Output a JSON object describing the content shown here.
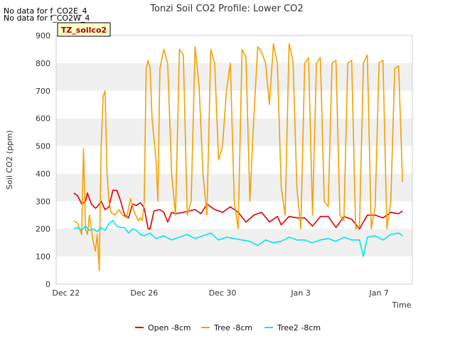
{
  "chart_data": {
    "type": "line",
    "title": "Tonzi Soil CO2 Profile: Lower CO2",
    "notes": [
      "No data for f_CO2E_4",
      "No data for f_CO2W_4"
    ],
    "tag": "TZ_soilco2",
    "xlabel": "Time",
    "ylabel": "Soil CO2 (ppm)",
    "ylim": [
      0,
      900
    ],
    "yticks": [
      0,
      100,
      200,
      300,
      400,
      500,
      600,
      700,
      800,
      900
    ],
    "xlim": [
      -0.5,
      17.7
    ],
    "xticks": [
      {
        "day": 0,
        "label": "Dec 22"
      },
      {
        "day": 4,
        "label": "Dec 26"
      },
      {
        "day": 8,
        "label": "Dec 30"
      },
      {
        "day": 12,
        "label": "Jan 3"
      },
      {
        "day": 16,
        "label": "Jan 7"
      }
    ],
    "grid": "horizontal alternating bands",
    "legend_position": "bottom",
    "series": [
      {
        "name": "Open -8cm",
        "color": "#dd0000",
        "x": [
          0.4,
          0.6,
          0.8,
          1.0,
          1.1,
          1.3,
          1.5,
          1.6,
          1.8,
          2.0,
          2.2,
          2.4,
          2.6,
          2.8,
          3.0,
          3.2,
          3.4,
          3.6,
          3.8,
          4.0,
          4.2,
          4.3,
          4.5,
          4.8,
          5.0,
          5.2,
          5.4,
          5.6,
          6.0,
          6.3,
          6.6,
          6.9,
          7.2,
          7.6,
          8.0,
          8.4,
          8.8,
          9.2,
          9.6,
          10.0,
          10.4,
          10.8,
          11.0,
          11.4,
          11.8,
          12.2,
          12.6,
          13.0,
          13.4,
          13.8,
          14.2,
          14.6,
          15.0,
          15.4,
          15.8,
          16.2,
          16.6,
          17.0,
          17.2
        ],
        "values": [
          330,
          320,
          290,
          300,
          330,
          290,
          275,
          280,
          300,
          270,
          280,
          340,
          340,
          300,
          250,
          240,
          290,
          285,
          295,
          275,
          200,
          200,
          265,
          270,
          260,
          225,
          260,
          255,
          260,
          265,
          270,
          255,
          290,
          270,
          260,
          280,
          260,
          225,
          250,
          260,
          225,
          245,
          215,
          245,
          240,
          240,
          210,
          245,
          245,
          205,
          245,
          235,
          200,
          250,
          250,
          240,
          260,
          255,
          265
        ]
      },
      {
        "name": "Tree -8cm",
        "color": "#f5a000",
        "x": [
          0.4,
          0.6,
          0.8,
          0.9,
          1.0,
          1.1,
          1.2,
          1.4,
          1.5,
          1.6,
          1.7,
          1.8,
          1.9,
          2.0,
          2.1,
          2.2,
          2.3,
          2.5,
          2.7,
          2.9,
          3.1,
          3.3,
          3.5,
          3.7,
          3.8,
          3.9,
          4.0,
          4.1,
          4.2,
          4.3,
          4.4,
          4.6,
          4.7,
          4.8,
          5.0,
          5.2,
          5.4,
          5.6,
          5.8,
          6.0,
          6.2,
          6.4,
          6.6,
          6.8,
          7.0,
          7.2,
          7.4,
          7.6,
          7.8,
          8.0,
          8.2,
          8.4,
          8.6,
          8.8,
          9.0,
          9.2,
          9.4,
          9.6,
          9.8,
          10.0,
          10.2,
          10.4,
          10.6,
          10.8,
          11.0,
          11.2,
          11.4,
          11.6,
          11.8,
          12.0,
          12.2,
          12.4,
          12.6,
          12.8,
          13.0,
          13.2,
          13.4,
          13.6,
          13.8,
          14.0,
          14.2,
          14.4,
          14.6,
          14.8,
          15.0,
          15.2,
          15.4,
          15.6,
          15.8,
          16.0,
          16.2,
          16.4,
          16.6,
          16.8,
          17.0,
          17.2
        ],
        "values": [
          230,
          220,
          180,
          490,
          200,
          180,
          250,
          150,
          120,
          180,
          50,
          500,
          680,
          700,
          400,
          300,
          260,
          250,
          270,
          250,
          240,
          310,
          260,
          230,
          240,
          230,
          300,
          780,
          810,
          780,
          600,
          450,
          300,
          780,
          850,
          800,
          400,
          250,
          850,
          830,
          250,
          300,
          860,
          720,
          400,
          250,
          850,
          800,
          450,
          500,
          700,
          800,
          300,
          200,
          850,
          820,
          300,
          600,
          860,
          840,
          800,
          650,
          870,
          800,
          350,
          250,
          870,
          810,
          350,
          200,
          800,
          820,
          250,
          800,
          820,
          300,
          280,
          800,
          810,
          250,
          230,
          800,
          810,
          200,
          210,
          800,
          830,
          200,
          280,
          800,
          810,
          200,
          300,
          780,
          790,
          370
        ]
      },
      {
        "name": "Tree2 -8cm",
        "color": "#00e5ee",
        "x": [
          0.4,
          0.6,
          0.8,
          1.0,
          1.2,
          1.4,
          1.6,
          1.8,
          2.0,
          2.2,
          2.4,
          2.6,
          2.8,
          3.0,
          3.2,
          3.4,
          3.6,
          3.8,
          4.0,
          4.3,
          4.6,
          5.0,
          5.4,
          5.8,
          6.2,
          6.6,
          7.0,
          7.4,
          7.8,
          8.2,
          8.6,
          9.0,
          9.4,
          9.8,
          10.2,
          10.6,
          11.0,
          11.4,
          11.8,
          12.2,
          12.6,
          13.0,
          13.4,
          13.8,
          14.2,
          14.6,
          15.0,
          15.2,
          15.4,
          15.8,
          16.2,
          16.6,
          17.0,
          17.2
        ],
        "values": [
          200,
          205,
          195,
          210,
          195,
          200,
          190,
          205,
          195,
          220,
          230,
          210,
          205,
          205,
          185,
          200,
          195,
          180,
          175,
          185,
          165,
          175,
          160,
          170,
          180,
          165,
          175,
          185,
          160,
          170,
          165,
          160,
          155,
          140,
          160,
          150,
          155,
          170,
          160,
          160,
          150,
          160,
          165,
          155,
          170,
          160,
          160,
          100,
          170,
          175,
          160,
          180,
          185,
          175
        ]
      }
    ]
  }
}
